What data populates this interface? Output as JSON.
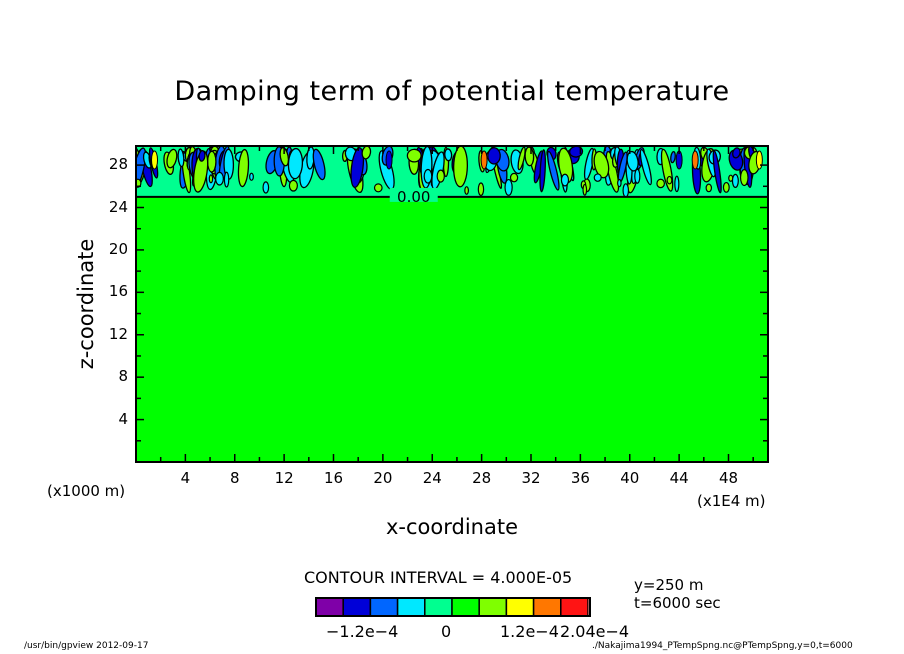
{
  "chart_data": {
    "type": "heatmap",
    "subtype": "filled contour",
    "title": "Damping term of potential temperature",
    "xlabel": "x-coordinate",
    "ylabel": "z-coordinate",
    "x_unit_label": "(x1000 m)",
    "x_unit_label_right": "(x1E4 m)",
    "xlim": [
      0,
      51.2
    ],
    "ylim": [
      0,
      29.8
    ],
    "x_ticks": [
      4,
      8,
      12,
      16,
      20,
      24,
      28,
      32,
      36,
      40,
      44,
      48
    ],
    "x_tick_labels": [
      "4",
      "8",
      "12",
      "16",
      "20",
      "24",
      "28",
      "32",
      "36",
      "40",
      "44",
      "48"
    ],
    "y_ticks": [
      4,
      8,
      12,
      16,
      20,
      24,
      28
    ],
    "y_tick_labels": [
      "4",
      "8",
      "12",
      "16",
      "20",
      "24",
      "28"
    ],
    "contour_label": "0.00",
    "zero_contour_z": 25,
    "sponge_layer": {
      "z_min": 25,
      "z_max": 29.8,
      "description_values": "small-scale alternating positive/negative features"
    },
    "interior_value": 0,
    "contour_interval_text": "CONTOUR INTERVAL = 4.000E-05",
    "colorbar": {
      "colors": [
        "#7f00a8",
        "#0000d8",
        "#0066ff",
        "#00e8ff",
        "#00ff90",
        "#00ff00",
        "#7fff00",
        "#ffff00",
        "#ff7700",
        "#ff1414"
      ],
      "levels": [
        -0.0002,
        -0.00016,
        -0.00012,
        -8e-05,
        -4e-05,
        0,
        4e-05,
        8e-05,
        0.00012,
        0.00016,
        0.0002
      ],
      "labels": [
        "-1.2e-4",
        "0",
        "1.2e-4",
        "2.04e-4"
      ]
    }
  },
  "info": {
    "line1": "y=250 m",
    "line2": "t=6000 sec"
  },
  "footer": {
    "left": "/usr/bin/gpview   2012-09-17",
    "right": "./Nakajima1994_PTempSpng.nc@PTempSpng,y=0,t=6000"
  }
}
